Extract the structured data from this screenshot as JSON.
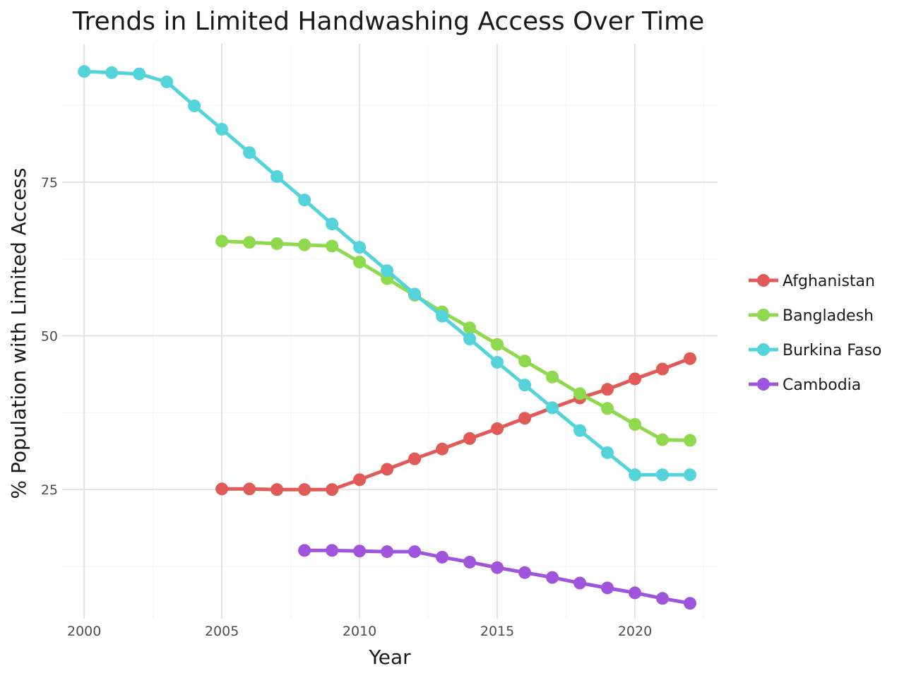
{
  "chart_data": {
    "type": "line",
    "title": "Trends in Limited Handwashing Access Over Time",
    "xlabel": "Year",
    "ylabel": "% Population with Limited Access",
    "xlim": [
      1999.2,
      2023.0
    ],
    "ylim": [
      4.0,
      97.5
    ],
    "x_ticks": [
      2000,
      2005,
      2010,
      2015,
      2020
    ],
    "y_ticks": [
      25,
      50,
      75
    ],
    "grid": true,
    "legend_position": "right",
    "series": [
      {
        "name": "Afghanistan",
        "color": "#e05b57",
        "x": [
          2005,
          2006,
          2007,
          2008,
          2009,
          2010,
          2011,
          2012,
          2013,
          2014,
          2015,
          2016,
          2017,
          2018,
          2019,
          2020,
          2021,
          2022
        ],
        "values": [
          25.1,
          25.1,
          25.0,
          25.0,
          25.0,
          26.6,
          28.3,
          30.0,
          31.6,
          33.3,
          34.9,
          36.6,
          38.3,
          39.9,
          41.3,
          43.0,
          44.6,
          46.3
        ]
      },
      {
        "name": "Bangladesh",
        "color": "#8fd94e",
        "x": [
          2005,
          2006,
          2007,
          2008,
          2009,
          2010,
          2011,
          2012,
          2013,
          2014,
          2015,
          2016,
          2017,
          2018,
          2019,
          2020,
          2021,
          2022
        ],
        "values": [
          65.4,
          65.2,
          65.0,
          64.8,
          64.6,
          62.0,
          59.3,
          56.6,
          53.9,
          51.3,
          48.6,
          45.9,
          43.3,
          40.6,
          38.2,
          35.6,
          33.1,
          33.0
        ]
      },
      {
        "name": "Burkina Faso",
        "color": "#55d3db",
        "x": [
          2000,
          2001,
          2002,
          2003,
          2004,
          2005,
          2006,
          2007,
          2008,
          2009,
          2010,
          2011,
          2012,
          2013,
          2014,
          2015,
          2016,
          2017,
          2018,
          2019,
          2020,
          2021,
          2022
        ],
        "values": [
          93.0,
          92.8,
          92.6,
          91.3,
          87.4,
          83.6,
          79.8,
          75.9,
          72.1,
          68.2,
          64.4,
          60.6,
          56.8,
          53.2,
          49.5,
          45.7,
          42.0,
          38.3,
          34.6,
          31.0,
          27.4,
          27.4,
          27.4
        ]
      },
      {
        "name": "Cambodia",
        "color": "#9f54dc",
        "x": [
          2008,
          2009,
          2010,
          2011,
          2012,
          2013,
          2014,
          2015,
          2016,
          2017,
          2018,
          2019,
          2020,
          2021,
          2022
        ],
        "values": [
          15.1,
          15.1,
          15.0,
          14.9,
          14.9,
          14.0,
          13.2,
          12.3,
          11.5,
          10.7,
          9.8,
          9.0,
          8.2,
          7.3,
          6.5
        ]
      }
    ]
  }
}
